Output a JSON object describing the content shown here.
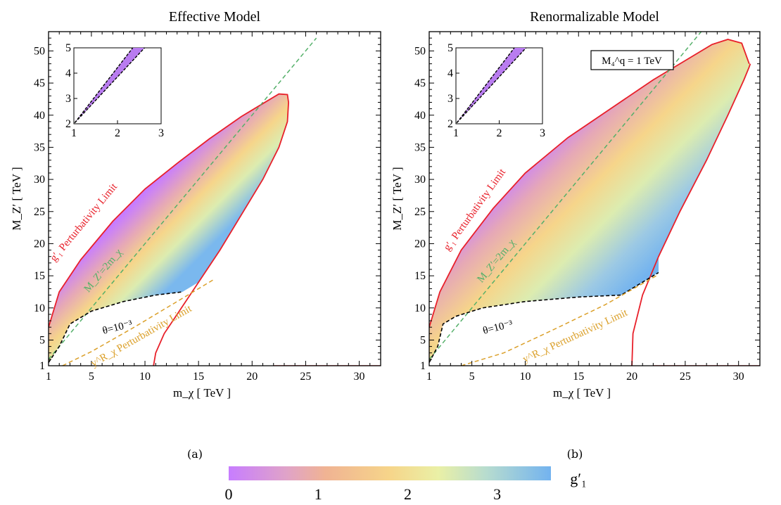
{
  "panels": [
    {
      "id": "a",
      "title": "Effective Model",
      "caption": "(a)",
      "xlabel": "m_χ [ TeV ]",
      "ylabel": "M_Z′ [ TeV ]",
      "xticks": [
        1,
        5,
        10,
        15,
        20,
        25,
        30
      ],
      "yticks": [
        1,
        5,
        10,
        15,
        20,
        25,
        30,
        35,
        40,
        45,
        50
      ],
      "inset_xticks": [
        1,
        2,
        3
      ],
      "inset_yticks": [
        2,
        3,
        4,
        5
      ],
      "annotations": {
        "g1_limit": "g′₁ Perturbativity Limit",
        "resonance": "M_Z′=2m_χ",
        "theta": "θ=10⁻³",
        "ychi_limit": "y^R_χ Perturbativity Limit"
      },
      "box_label": ""
    },
    {
      "id": "b",
      "title": "Renormalizable Model",
      "caption": "(b)",
      "xlabel": "m_χ [ TeV ]",
      "ylabel": "M_Z′ [ TeV ]",
      "xticks": [
        1,
        5,
        10,
        15,
        20,
        25,
        30
      ],
      "yticks": [
        1,
        5,
        10,
        15,
        20,
        25,
        30,
        35,
        40,
        45,
        50
      ],
      "inset_xticks": [
        1,
        2,
        3
      ],
      "inset_yticks": [
        2,
        3,
        4,
        5
      ],
      "annotations": {
        "g1_limit": "g′₁ Perturbativity Limit",
        "resonance": "M_Z′=2m_χ",
        "theta": "θ=10⁻³",
        "ychi_limit": "y^R_χ Perturbativity Limit"
      },
      "box_label": "M₄^q = 1 TeV"
    }
  ],
  "colorbar": {
    "label": "g′₁",
    "ticks": [
      "0",
      "1",
      "2",
      "3"
    ],
    "range": [
      0,
      3.6
    ]
  },
  "chart_data": [
    {
      "type": "heatmap",
      "title": "Effective Model",
      "xlabel": "m_χ [ TeV ]",
      "ylabel": "M_Z′ [ TeV ]",
      "xlim": [
        1,
        32
      ],
      "ylim": [
        1,
        53
      ],
      "series": [
        {
          "name": "g′₁ Perturbativity Limit",
          "x": [
            1,
            2,
            4,
            7,
            10,
            13,
            16,
            19,
            21,
            22.5,
            23.3,
            23.4
          ],
          "y": [
            7,
            12.5,
            17.5,
            23.5,
            28.5,
            32.5,
            36.3,
            39.8,
            41.8,
            43.3,
            43.2,
            42
          ]
        },
        {
          "name": "g′₁ Perturbativity Limit (lower)",
          "x": [
            10.8,
            11,
            11.8,
            13.2,
            15,
            17,
            19,
            21,
            22.5,
            23.3,
            23.4
          ],
          "y": [
            1,
            3,
            6,
            9.5,
            14,
            19,
            24.5,
            30,
            35,
            39,
            42
          ]
        },
        {
          "name": "M_Z′=2m_χ",
          "x": [
            1,
            26
          ],
          "y": [
            2,
            52
          ]
        },
        {
          "name": "θ=10⁻³",
          "x": [
            1,
            2,
            3,
            5,
            8,
            11,
            13.5
          ],
          "y": [
            1.5,
            4,
            7.5,
            9.5,
            11,
            12,
            12.5
          ]
        },
        {
          "name": "y^R_χ Perturbativity Limit",
          "x": [
            2.3,
            5,
            9,
            13,
            16.5
          ],
          "y": [
            1,
            3.2,
            7,
            11,
            14.5
          ]
        }
      ]
    },
    {
      "type": "heatmap",
      "title": "Renormalizable Model",
      "xlabel": "m_χ [ TeV ]",
      "ylabel": "M_Z′ [ TeV ]",
      "xlim": [
        1,
        32
      ],
      "ylim": [
        1,
        53
      ],
      "series": [
        {
          "name": "g′₁ Perturbativity Limit",
          "x": [
            1,
            2,
            4,
            7,
            10,
            14,
            18,
            22,
            25,
            27.5,
            29,
            30.3,
            31
          ],
          "y": [
            7,
            12.5,
            19,
            25.5,
            31,
            36.5,
            41,
            45.5,
            48.5,
            51,
            51.8,
            51.2,
            48
          ]
        },
        {
          "name": "g′₁ Perturbativity Limit (lower)",
          "x": [
            20,
            20.1,
            21,
            22.5,
            24.5,
            27,
            29,
            30.5,
            31,
            31.1
          ],
          "y": [
            1,
            6,
            12,
            18,
            25,
            33,
            40,
            45.5,
            47.5,
            48
          ]
        },
        {
          "name": "M_Z′=2m_χ",
          "x": [
            1,
            26.5
          ],
          "y": [
            2,
            53
          ]
        },
        {
          "name": "θ=10⁻³",
          "x": [
            1,
            1.8,
            2.3,
            3.5,
            6,
            10,
            15,
            19,
            22.5
          ],
          "y": [
            1.5,
            4,
            7.5,
            8.7,
            10,
            11,
            11.7,
            12,
            15.5
          ]
        },
        {
          "name": "y^R_χ Perturbativity Limit",
          "x": [
            4,
            8,
            12.5,
            17.5,
            22.5
          ],
          "y": [
            1,
            3,
            6.5,
            10.5,
            15.2
          ]
        }
      ],
      "annotation": "M₄^q = 1 TeV"
    }
  ]
}
